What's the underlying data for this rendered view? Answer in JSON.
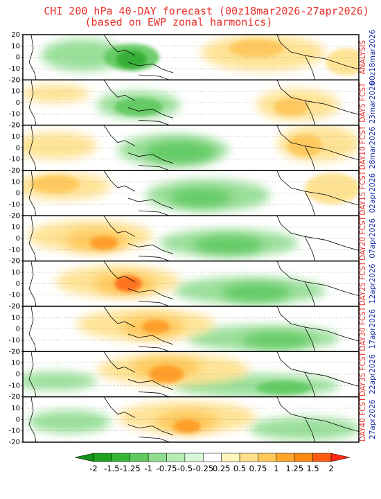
{
  "header": {
    "title": "CHI 200 hPa 40-DAY forecast (00z18mar2026-27apr2026)",
    "subtitle": "(based on EWP zonal harmonics)"
  },
  "y_axis_ticks": [
    "20",
    "10",
    "0",
    "-10",
    "-20"
  ],
  "panels": [
    {
      "label": "ANALYSIS",
      "date": "00z18mar2026"
    },
    {
      "label": "DAY5 FCST",
      "date": "23mar2026"
    },
    {
      "label": "DAY10 FCST",
      "date": "28mar2026"
    },
    {
      "label": "DAY15 FCST",
      "date": "02apr2026"
    },
    {
      "label": "DAY20 FCST",
      "date": "07apr2026"
    },
    {
      "label": "DAY25 FCST",
      "date": "12apr2026"
    },
    {
      "label": "DAY30 FCST",
      "date": "17apr2026"
    },
    {
      "label": "DAY35 FCST",
      "date": "22apr2026"
    },
    {
      "label": "DAY40 FCST",
      "date": "27apr2026"
    }
  ],
  "colorbar": {
    "labels": [
      "-2",
      "-1.5",
      "-1.25",
      "-1",
      "-0.75",
      "-0.5",
      "-0.25",
      "0.25",
      "0.5",
      "0.75",
      "1",
      "1.25",
      "1.5",
      "2"
    ]
  }
}
